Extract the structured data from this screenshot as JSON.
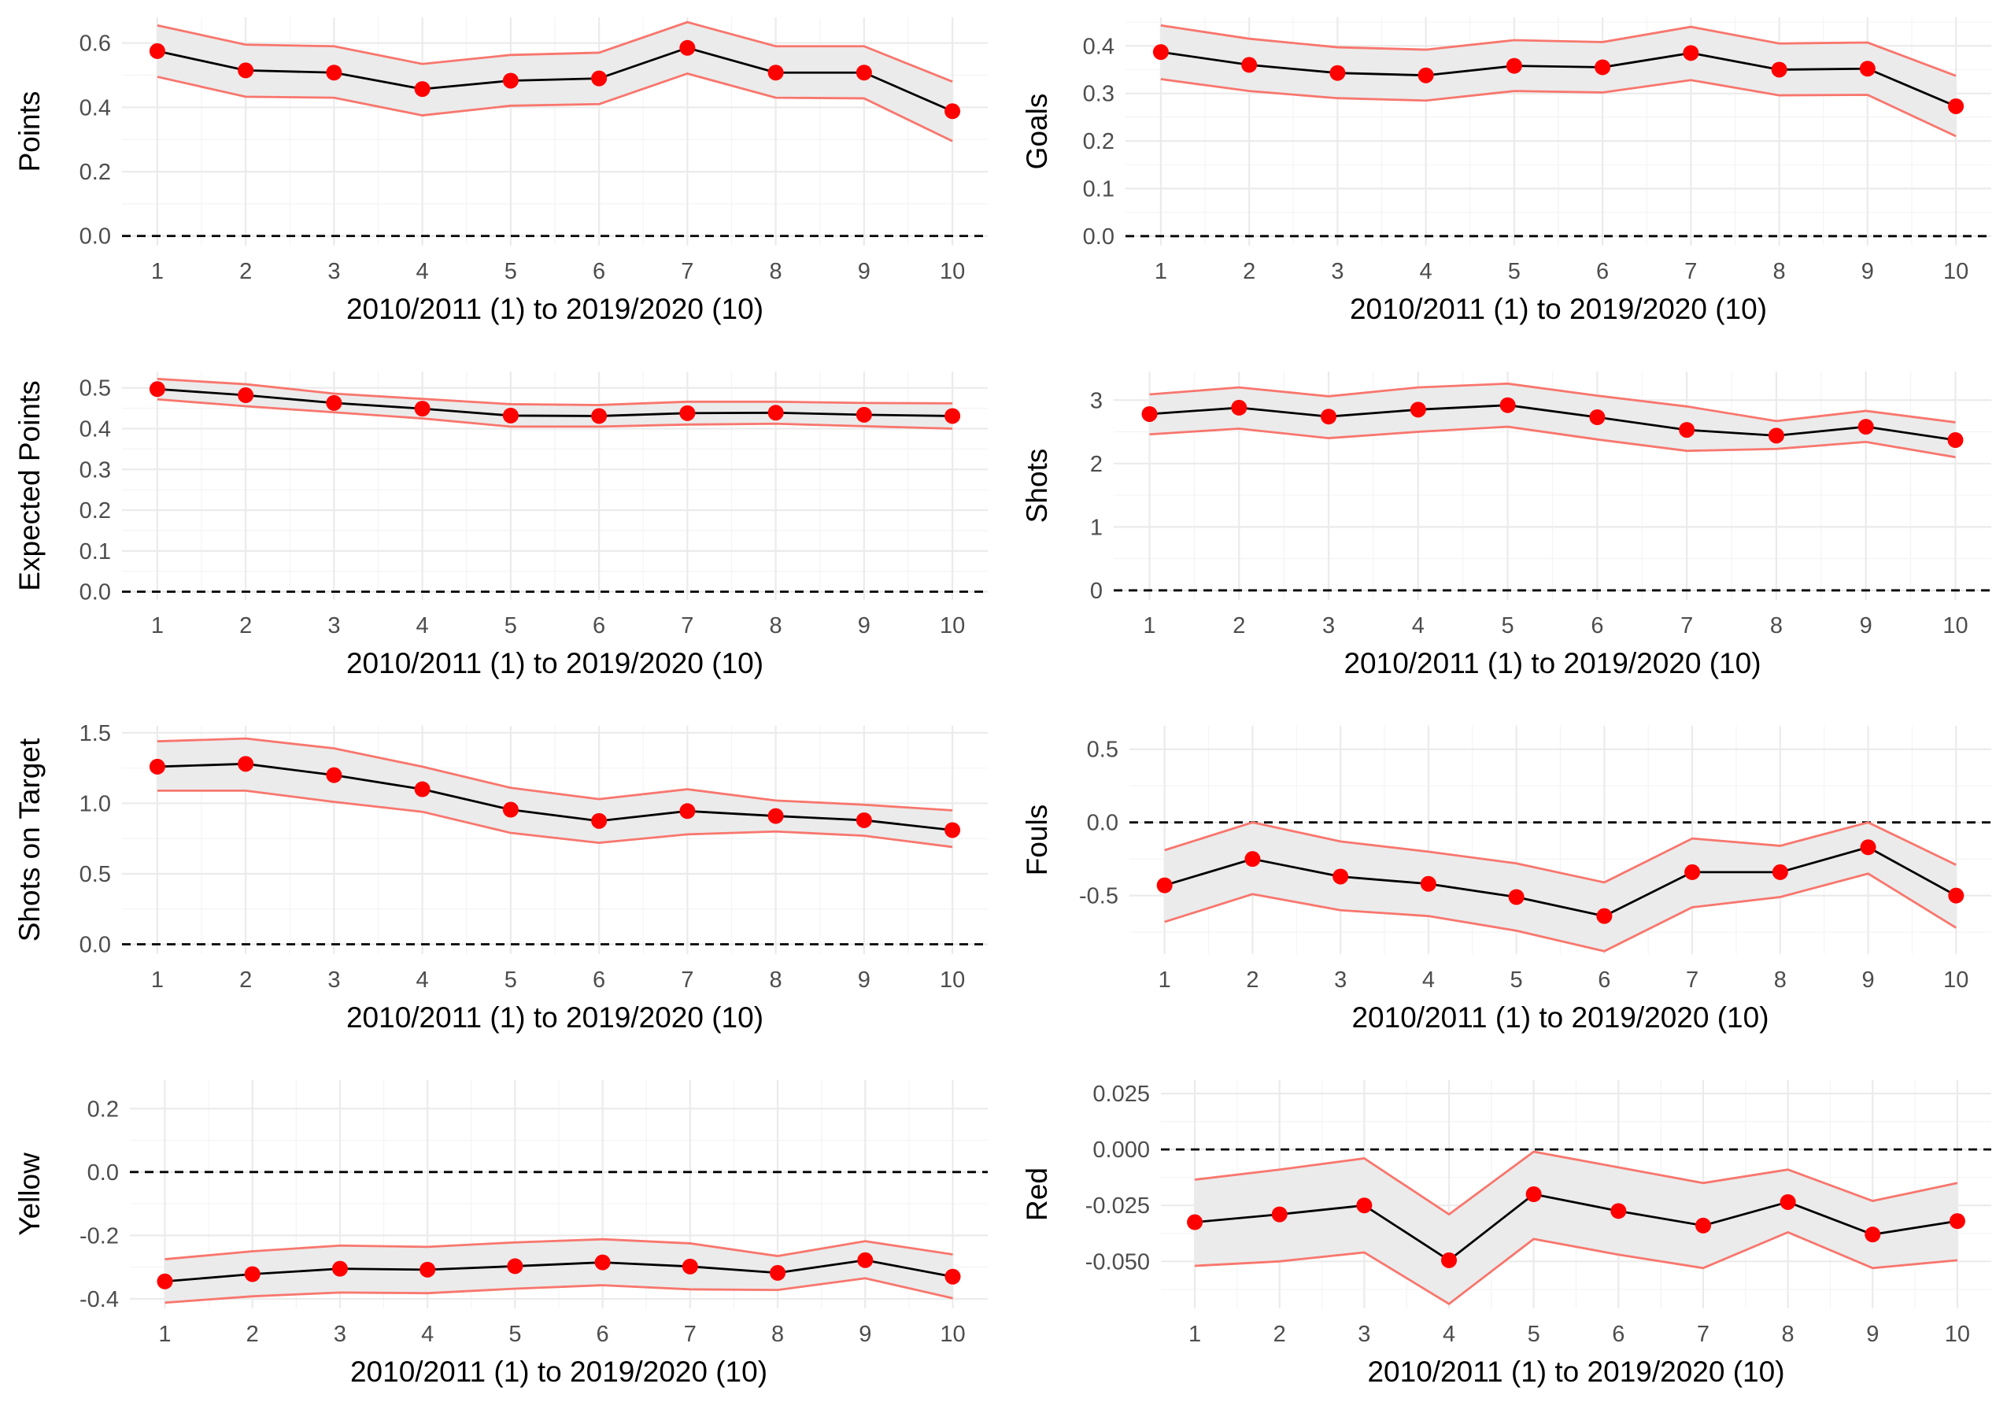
{
  "chart_data": [
    {
      "type": "line",
      "ylabel": "Points",
      "xlabel": "2010/2011 (1) to 2019/2020 (10)",
      "x": [
        1,
        2,
        3,
        4,
        5,
        6,
        7,
        8,
        9,
        10
      ],
      "estimate": [
        0.575,
        0.515,
        0.508,
        0.457,
        0.483,
        0.49,
        0.585,
        0.508,
        0.508,
        0.388
      ],
      "lower": [
        0.495,
        0.433,
        0.43,
        0.375,
        0.405,
        0.41,
        0.505,
        0.43,
        0.428,
        0.295
      ],
      "upper": [
        0.655,
        0.595,
        0.59,
        0.535,
        0.563,
        0.57,
        0.665,
        0.59,
        0.59,
        0.48
      ],
      "ylim": [
        -0.03,
        0.68
      ],
      "yticks": [
        0,
        0.2,
        0.4,
        0.6
      ],
      "ytick_labels": [
        "0.0",
        "0.2",
        "0.4",
        "0.6"
      ],
      "reference_line": 0
    },
    {
      "type": "line",
      "ylabel": "Goals",
      "xlabel": "2010/2011 (1) to 2019/2020 (10)",
      "x": [
        1,
        2,
        3,
        4,
        5,
        6,
        7,
        8,
        9,
        10
      ],
      "estimate": [
        0.387,
        0.36,
        0.343,
        0.338,
        0.358,
        0.355,
        0.385,
        0.35,
        0.352,
        0.273
      ],
      "lower": [
        0.33,
        0.305,
        0.29,
        0.285,
        0.305,
        0.302,
        0.328,
        0.296,
        0.297,
        0.21
      ],
      "upper": [
        0.443,
        0.415,
        0.397,
        0.392,
        0.412,
        0.408,
        0.44,
        0.405,
        0.407,
        0.337
      ],
      "ylim": [
        -0.02,
        0.46
      ],
      "yticks": [
        0,
        0.1,
        0.2,
        0.3,
        0.4
      ],
      "ytick_labels": [
        "0.0",
        "0.1",
        "0.2",
        "0.3",
        "0.4"
      ],
      "reference_line": 0
    },
    {
      "type": "line",
      "ylabel": "Expected Points",
      "xlabel": "2010/2011 (1) to 2019/2020 (10)",
      "x": [
        1,
        2,
        3,
        4,
        5,
        6,
        7,
        8,
        9,
        10
      ],
      "estimate": [
        0.497,
        0.482,
        0.463,
        0.449,
        0.432,
        0.431,
        0.438,
        0.439,
        0.434,
        0.431
      ],
      "lower": [
        0.472,
        0.455,
        0.44,
        0.425,
        0.405,
        0.405,
        0.41,
        0.412,
        0.406,
        0.4
      ],
      "upper": [
        0.522,
        0.509,
        0.486,
        0.473,
        0.46,
        0.458,
        0.466,
        0.466,
        0.463,
        0.462
      ],
      "ylim": [
        -0.02,
        0.54
      ],
      "yticks": [
        0,
        0.1,
        0.2,
        0.3,
        0.4,
        0.5
      ],
      "ytick_labels": [
        "0.0",
        "0.1",
        "0.2",
        "0.3",
        "0.4",
        "0.5"
      ],
      "reference_line": 0
    },
    {
      "type": "line",
      "ylabel": "Shots",
      "xlabel": "2010/2011 (1) to 2019/2020 (10)",
      "x": [
        1,
        2,
        3,
        4,
        5,
        6,
        7,
        8,
        9,
        10
      ],
      "estimate": [
        2.78,
        2.88,
        2.74,
        2.85,
        2.92,
        2.73,
        2.53,
        2.44,
        2.58,
        2.37
      ],
      "lower": [
        2.46,
        2.55,
        2.4,
        2.5,
        2.58,
        2.38,
        2.2,
        2.23,
        2.34,
        2.1
      ],
      "upper": [
        3.09,
        3.2,
        3.06,
        3.2,
        3.26,
        3.07,
        2.9,
        2.67,
        2.83,
        2.65
      ],
      "ylim": [
        -0.15,
        3.45
      ],
      "yticks": [
        0,
        1,
        2,
        3
      ],
      "ytick_labels": [
        "0",
        "1",
        "2",
        "3"
      ],
      "reference_line": 0
    },
    {
      "type": "line",
      "ylabel": "Shots on Target",
      "xlabel": "2010/2011 (1) to 2019/2020 (10)",
      "x": [
        1,
        2,
        3,
        4,
        5,
        6,
        7,
        8,
        9,
        10
      ],
      "estimate": [
        1.26,
        1.28,
        1.2,
        1.1,
        0.955,
        0.875,
        0.945,
        0.91,
        0.88,
        0.81
      ],
      "lower": [
        1.09,
        1.09,
        1.01,
        0.94,
        0.79,
        0.72,
        0.78,
        0.8,
        0.77,
        0.69
      ],
      "upper": [
        1.44,
        1.46,
        1.39,
        1.26,
        1.11,
        1.03,
        1.1,
        1.02,
        0.99,
        0.95
      ],
      "ylim": [
        -0.07,
        1.55
      ],
      "yticks": [
        0,
        0.5,
        1.0,
        1.5
      ],
      "ytick_labels": [
        "0.0",
        "0.5",
        "1.0",
        "1.5"
      ],
      "reference_line": 0
    },
    {
      "type": "line",
      "ylabel": "Fouls",
      "xlabel": "2010/2011 (1) to 2019/2020 (10)",
      "x": [
        1,
        2,
        3,
        4,
        5,
        6,
        7,
        8,
        9,
        10
      ],
      "estimate": [
        -0.43,
        -0.25,
        -0.37,
        -0.42,
        -0.51,
        -0.64,
        -0.34,
        -0.34,
        -0.17,
        -0.5
      ],
      "lower": [
        -0.68,
        -0.49,
        -0.6,
        -0.64,
        -0.74,
        -0.88,
        -0.58,
        -0.51,
        -0.35,
        -0.72
      ],
      "upper": [
        -0.19,
        0.0,
        -0.13,
        -0.2,
        -0.28,
        -0.41,
        -0.11,
        -0.16,
        0.0,
        -0.29
      ],
      "ylim": [
        -0.9,
        0.66
      ],
      "yticks": [
        -0.5,
        0,
        0.5
      ],
      "ytick_labels": [
        "-0.5",
        "0.0",
        "0.5"
      ],
      "reference_line": 0
    },
    {
      "type": "line",
      "ylabel": "Yellow",
      "xlabel": "2010/2011 (1) to 2019/2020 (10)",
      "x": [
        1,
        2,
        3,
        4,
        5,
        6,
        7,
        8,
        9,
        10
      ],
      "estimate": [
        -0.345,
        -0.322,
        -0.305,
        -0.308,
        -0.297,
        -0.285,
        -0.298,
        -0.318,
        -0.278,
        -0.33
      ],
      "lower": [
        -0.412,
        -0.392,
        -0.38,
        -0.382,
        -0.368,
        -0.357,
        -0.37,
        -0.372,
        -0.335,
        -0.398
      ],
      "upper": [
        -0.275,
        -0.25,
        -0.232,
        -0.236,
        -0.222,
        -0.212,
        -0.225,
        -0.265,
        -0.218,
        -0.26
      ],
      "ylim": [
        -0.43,
        0.29
      ],
      "yticks": [
        -0.4,
        -0.2,
        0,
        0.2
      ],
      "ytick_labels": [
        "-0.4",
        "-0.2",
        "0.0",
        "0.2"
      ],
      "reference_line": 0
    },
    {
      "type": "line",
      "ylabel": "Red",
      "xlabel": "2010/2011 (1) to 2019/2020 (10)",
      "x": [
        1,
        2,
        3,
        4,
        5,
        6,
        7,
        8,
        9,
        10
      ],
      "estimate": [
        -0.0325,
        -0.029,
        -0.025,
        -0.0495,
        -0.02,
        -0.0275,
        -0.034,
        -0.0235,
        -0.038,
        -0.032
      ],
      "lower": [
        -0.052,
        -0.05,
        -0.046,
        -0.069,
        -0.04,
        -0.047,
        -0.053,
        -0.037,
        -0.053,
        -0.0495
      ],
      "upper": [
        -0.0135,
        -0.009,
        -0.004,
        -0.029,
        -0.001,
        -0.008,
        -0.015,
        -0.009,
        -0.023,
        -0.015
      ],
      "ylim": [
        -0.071,
        0.031
      ],
      "yticks": [
        -0.05,
        -0.025,
        0,
        0.025
      ],
      "ytick_labels": [
        "-0.050",
        "-0.025",
        "0.000",
        "0.025"
      ],
      "reference_line": 0
    }
  ]
}
